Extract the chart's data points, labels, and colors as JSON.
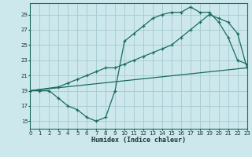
{
  "xlabel": "Humidex (Indice chaleur)",
  "bg_color": "#cce8ed",
  "grid_color": "#a8cdd4",
  "line_color": "#1a6b5e",
  "xlim": [
    0,
    23
  ],
  "ylim": [
    14,
    30.5
  ],
  "yticks": [
    15,
    17,
    19,
    21,
    23,
    25,
    27,
    29
  ],
  "xticks": [
    0,
    1,
    2,
    3,
    4,
    5,
    6,
    7,
    8,
    9,
    10,
    11,
    12,
    13,
    14,
    15,
    16,
    17,
    18,
    19,
    20,
    21,
    22,
    23
  ],
  "line1_x": [
    0,
    1,
    2,
    3,
    4,
    5,
    6,
    7,
    8,
    9,
    10,
    11,
    12,
    13,
    14,
    15,
    16,
    17,
    18,
    19,
    20,
    21,
    22,
    23
  ],
  "line1_y": [
    19,
    19,
    19,
    18,
    17,
    16.5,
    15.5,
    15,
    15.5,
    19.0,
    25.5,
    26.5,
    27.5,
    28.5,
    29,
    29.3,
    29.3,
    30,
    29.3,
    29.3,
    28,
    26,
    23,
    22.5
  ],
  "line2_x": [
    0,
    3,
    4,
    5,
    6,
    7,
    8,
    9,
    10,
    11,
    12,
    13,
    14,
    15,
    16,
    17,
    18,
    19,
    20,
    21,
    22,
    23
  ],
  "line2_y": [
    19,
    19.5,
    20,
    20.5,
    21,
    21.5,
    22,
    22,
    22.5,
    23,
    23.5,
    24,
    24.5,
    25,
    26,
    27,
    28,
    29,
    28.5,
    28,
    26.5,
    22
  ],
  "line3_x": [
    0,
    23
  ],
  "line3_y": [
    19,
    22
  ]
}
